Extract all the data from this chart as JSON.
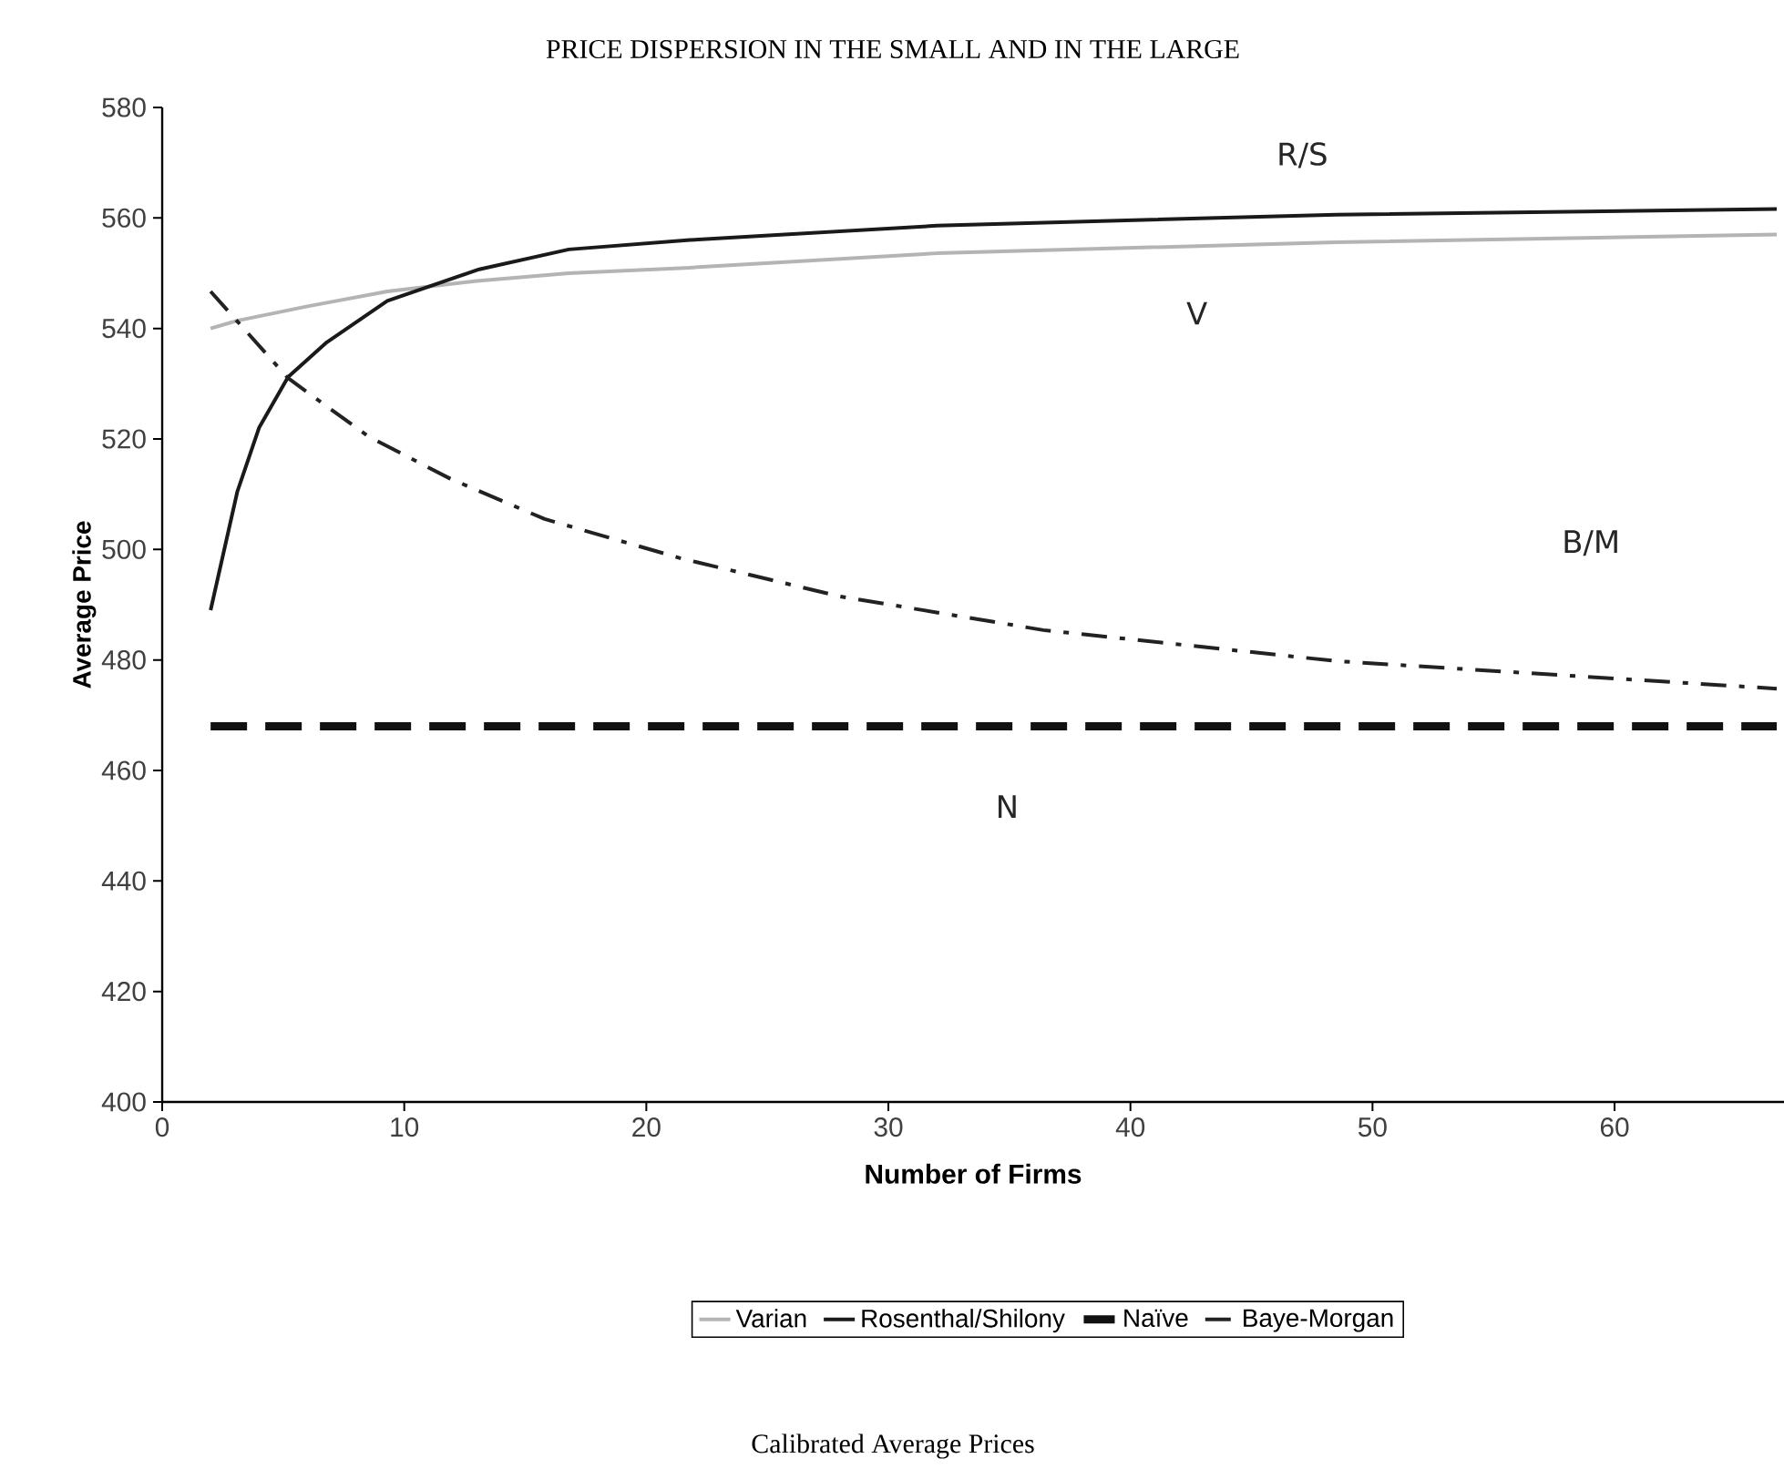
{
  "chart_data": {
    "type": "line",
    "title": "PRICE DISPERSION IN THE SMALL AND IN THE LARGE",
    "xlabel": "Number of Firms",
    "ylabel": "Average Price",
    "xlim": [
      0,
      67
    ],
    "xticks": [
      0,
      10,
      20,
      30,
      40,
      50,
      60
    ],
    "ylim": [
      400,
      580
    ],
    "yticks": [
      400,
      420,
      440,
      460,
      480,
      500,
      520,
      540,
      560,
      580
    ],
    "legend": "bottom",
    "grid": false,
    "series": [
      {
        "name": "Varian",
        "color": "#b4b4b4",
        "line_style": "solid",
        "x": [
          2,
          3.1,
          6,
          9.3,
          13,
          16.8,
          21.8,
          32,
          48.5,
          66.7
        ],
        "values": [
          540,
          541.4,
          544,
          546.7,
          548.6,
          550,
          551,
          553.6,
          555.6,
          557
        ]
      },
      {
        "name": "Rosenthal/Shilony",
        "color": "#1a1a1a",
        "line_style": "solid",
        "x": [
          2,
          3.1,
          4,
          5.2,
          6.8,
          9.3,
          13.1,
          16.8,
          21.8,
          32,
          48.5,
          66.7
        ],
        "values": [
          489,
          510.4,
          522,
          531.2,
          537.5,
          545,
          550.7,
          554.3,
          556,
          558.6,
          560.6,
          561.6
        ]
      },
      {
        "name": "Naïve",
        "color": "#111111",
        "line_style": "dashed",
        "x": [
          2,
          66.7
        ],
        "values": [
          468,
          468
        ]
      },
      {
        "name": "Baye-Morgan",
        "color": "#222222",
        "line_style": "dashdot",
        "x": [
          2,
          5.2,
          8.5,
          11.9,
          15.8,
          21.5,
          28,
          36.4,
          48.5,
          66.7
        ],
        "values": [
          546.7,
          531,
          520.5,
          512.8,
          505.5,
          498.3,
          491.5,
          485.4,
          479.8,
          474.8
        ]
      }
    ],
    "annotations": [
      "R/S",
      "V",
      "B/M",
      "N",
      "Calibrated Average Prices"
    ]
  }
}
